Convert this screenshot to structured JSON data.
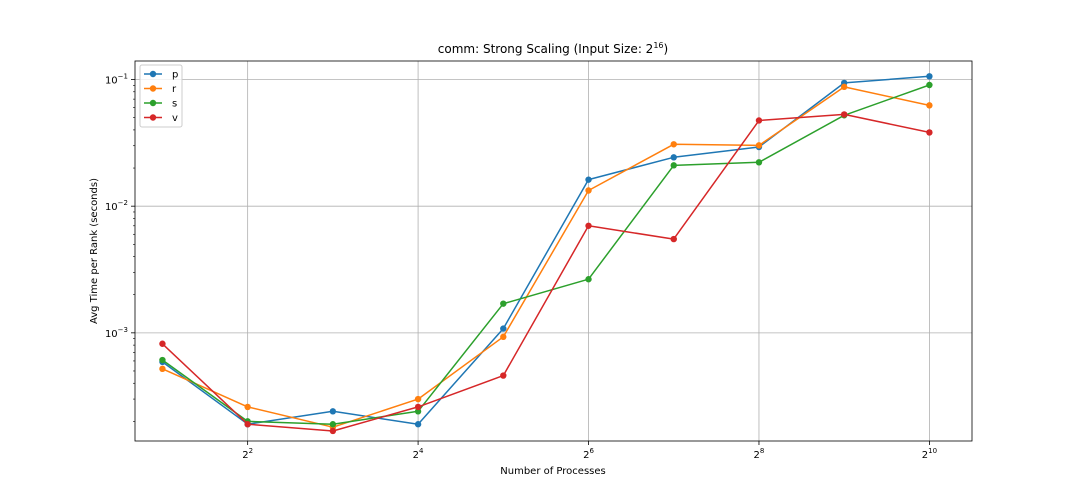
{
  "chart_data": {
    "type": "line",
    "title_prefix": "comm: Strong Scaling (Input Size: 2",
    "title_exponent": "16",
    "title_suffix": ")",
    "xlabel": "Number of Processes",
    "ylabel": "Avg Time per Rank (seconds)",
    "x_scale": "log2",
    "y_scale": "log10",
    "xlim": [
      1.6,
      1448
    ],
    "ylim": [
      0.00014,
      0.14
    ],
    "x_ticks": [
      {
        "value": 4,
        "base": "2",
        "exp": "2"
      },
      {
        "value": 16,
        "base": "2",
        "exp": "4"
      },
      {
        "value": 64,
        "base": "2",
        "exp": "6"
      },
      {
        "value": 256,
        "base": "2",
        "exp": "8"
      },
      {
        "value": 1024,
        "base": "2",
        "exp": "10"
      }
    ],
    "y_ticks": [
      {
        "value": 0.001,
        "base": "10",
        "exp": "−3"
      },
      {
        "value": 0.01,
        "base": "10",
        "exp": "−2"
      },
      {
        "value": 0.1,
        "base": "10",
        "exp": "−1"
      }
    ],
    "grid": true,
    "legend_position": "top-left",
    "x": [
      2,
      4,
      8,
      16,
      32,
      64,
      128,
      256,
      512,
      1024
    ],
    "series": [
      {
        "name": "p",
        "color": "#1f77b4",
        "values": [
          0.00059,
          0.00019,
          0.00024,
          0.00019,
          0.00108,
          0.0162,
          0.0243,
          0.0293,
          0.094,
          0.106
        ]
      },
      {
        "name": "r",
        "color": "#ff7f0e",
        "values": [
          0.00052,
          0.00026,
          0.00018,
          0.0003,
          0.00093,
          0.0133,
          0.0308,
          0.0302,
          0.0875,
          0.0625
        ]
      },
      {
        "name": "s",
        "color": "#2ca02c",
        "values": [
          0.00061,
          0.0002,
          0.00019,
          0.00024,
          0.0017,
          0.00265,
          0.021,
          0.0222,
          0.0522,
          0.0905
        ]
      },
      {
        "name": "v",
        "color": "#d62728",
        "values": [
          0.00082,
          0.00019,
          0.000168,
          0.00026,
          0.00046,
          0.007,
          0.0055,
          0.0475,
          0.053,
          0.0382
        ]
      }
    ]
  }
}
